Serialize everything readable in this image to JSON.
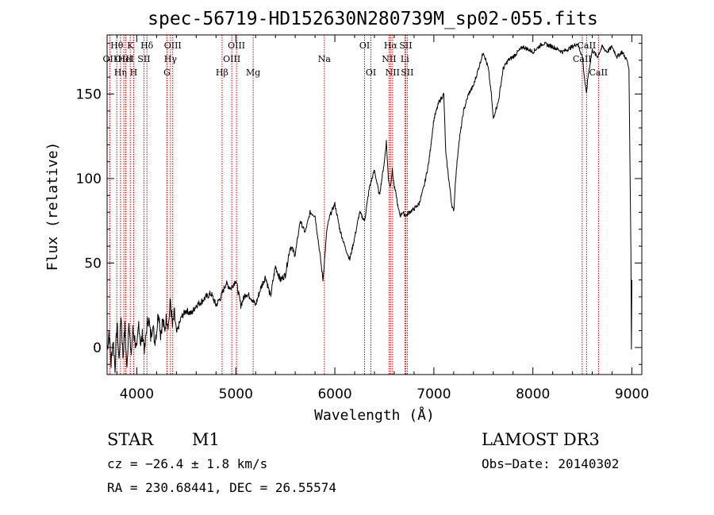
{
  "chart_data": {
    "type": "line",
    "title": "spec-56719-HD152630N280739M_sp02-055.fits",
    "xlabel": "Wavelength (Å)",
    "ylabel": "Flux (relative)",
    "xlim": [
      3700,
      9100
    ],
    "ylim": [
      -16,
      185
    ],
    "xticks": [
      4000,
      5000,
      6000,
      7000,
      8000,
      9000
    ],
    "yticks": [
      0,
      50,
      100,
      150
    ],
    "x_tick_labels": [
      "4000",
      "5000",
      "6000",
      "7000",
      "8000",
      "9000"
    ],
    "y_tick_labels": [
      "0",
      "50",
      "100",
      "150"
    ],
    "grid": false,
    "line_color": "#000000",
    "marker_color": "#cc0000",
    "series": [
      {
        "name": "flux",
        "x": [
          3700,
          3720,
          3740,
          3760,
          3780,
          3800,
          3820,
          3840,
          3860,
          3880,
          3900,
          3920,
          3940,
          3960,
          3980,
          4000,
          4020,
          4040,
          4060,
          4080,
          4100,
          4120,
          4140,
          4160,
          4180,
          4200,
          4220,
          4240,
          4260,
          4280,
          4300,
          4320,
          4340,
          4360,
          4380,
          4400,
          4450,
          4500,
          4550,
          4600,
          4650,
          4700,
          4750,
          4800,
          4850,
          4900,
          4950,
          5000,
          5050,
          5100,
          5150,
          5200,
          5250,
          5300,
          5350,
          5400,
          5450,
          5500,
          5550,
          5600,
          5650,
          5700,
          5750,
          5800,
          5850,
          5880,
          5900,
          5920,
          5950,
          6000,
          6050,
          6100,
          6150,
          6200,
          6250,
          6300,
          6350,
          6400,
          6450,
          6500,
          6520,
          6540,
          6560,
          6580,
          6600,
          6620,
          6640,
          6660,
          6680,
          6700,
          6720,
          6750,
          6800,
          6850,
          6900,
          6950,
          7000,
          7050,
          7100,
          7120,
          7150,
          7180,
          7200,
          7220,
          7250,
          7300,
          7350,
          7400,
          7450,
          7500,
          7550,
          7580,
          7600,
          7620,
          7650,
          7700,
          7750,
          7800,
          7850,
          7900,
          8000,
          8100,
          8200,
          8300,
          8400,
          8450,
          8500,
          8520,
          8540,
          8560,
          8600,
          8650,
          8700,
          8750,
          8800,
          8850,
          8900,
          8950,
          8970,
          8990,
          8995,
          9000
        ],
        "y": [
          -2,
          10,
          -10,
          5,
          -12,
          15,
          -8,
          20,
          -5,
          12,
          -14,
          18,
          -6,
          10,
          5,
          -3,
          15,
          2,
          8,
          -2,
          12,
          18,
          6,
          14,
          4,
          10,
          22,
          8,
          16,
          10,
          18,
          14,
          28,
          12,
          20,
          8,
          18,
          22,
          20,
          25,
          27,
          30,
          32,
          25,
          30,
          38,
          35,
          40,
          25,
          32,
          30,
          25,
          35,
          42,
          30,
          48,
          40,
          43,
          60,
          55,
          75,
          68,
          80,
          78,
          55,
          40,
          55,
          70,
          78,
          85,
          70,
          60,
          52,
          65,
          80,
          75,
          95,
          105,
          90,
          110,
          122,
          100,
          95,
          105,
          95,
          90,
          82,
          78,
          80,
          79,
          78,
          80,
          82,
          85,
          95,
          110,
          135,
          145,
          150,
          115,
          100,
          85,
          80,
          100,
          120,
          140,
          150,
          155,
          165,
          175,
          165,
          150,
          135,
          140,
          145,
          165,
          170,
          172,
          175,
          178,
          175,
          180,
          178,
          175,
          178,
          180,
          172,
          160,
          150,
          162,
          176,
          172,
          178,
          175,
          178,
          172,
          175,
          170,
          165,
          55,
          -1,
          40
        ]
      }
    ],
    "line_markers": [
      {
        "label": "OII",
        "x": 3727,
        "row": 2
      },
      {
        "label": "Hθ",
        "x": 3798,
        "row": 1
      },
      {
        "label": "Hη",
        "x": 3835,
        "row": 3
      },
      {
        "label": "OIII",
        "x": 3869,
        "row": 2
      },
      {
        "label": "HeI",
        "x": 3889,
        "row": 2
      },
      {
        "label": "K",
        "x": 3934,
        "row": 1
      },
      {
        "label": "H",
        "x": 3968,
        "row": 3
      },
      {
        "label": "SII",
        "x": 4072,
        "row": 2
      },
      {
        "label": "Hδ",
        "x": 4102,
        "row": 1
      },
      {
        "label": "G",
        "x": 4305,
        "row": 3
      },
      {
        "label": "Hγ",
        "x": 4340,
        "row": 2
      },
      {
        "label": "OIII",
        "x": 4363,
        "row": 1
      },
      {
        "label": "Hβ",
        "x": 4861,
        "row": 3
      },
      {
        "label": "OIII",
        "x": 4959,
        "row": 2
      },
      {
        "label": "OIII",
        "x": 5007,
        "row": 1
      },
      {
        "label": "Mg",
        "x": 5175,
        "row": 3
      },
      {
        "label": "Na",
        "x": 5894,
        "row": 2
      },
      {
        "label": "OI",
        "x": 6300,
        "row": 1
      },
      {
        "label": "OI",
        "x": 6364,
        "row": 3
      },
      {
        "label": "NII",
        "x": 6548,
        "row": 2
      },
      {
        "label": "Hα",
        "x": 6563,
        "row": 1
      },
      {
        "label": "NII",
        "x": 6583,
        "row": 3
      },
      {
        "label": "Li",
        "x": 6707,
        "row": 2
      },
      {
        "label": "SII",
        "x": 6716,
        "row": 1
      },
      {
        "label": "SII",
        "x": 6731,
        "row": 3
      },
      {
        "label": "CaII",
        "x": 8498,
        "row": 2
      },
      {
        "label": "CaII",
        "x": 8542,
        "row": 1
      },
      {
        "label": "CaII",
        "x": 8662,
        "row": 3
      }
    ]
  },
  "info": {
    "object_class": "STAR",
    "subclass": "M1",
    "survey": "LAMOST DR3",
    "redshift_line": "cz = −26.4 ± 1.8 km/s",
    "obs_date": "Obs−Date: 20140302",
    "coords": "RA = 230.68441, DEC =  26.55574"
  }
}
